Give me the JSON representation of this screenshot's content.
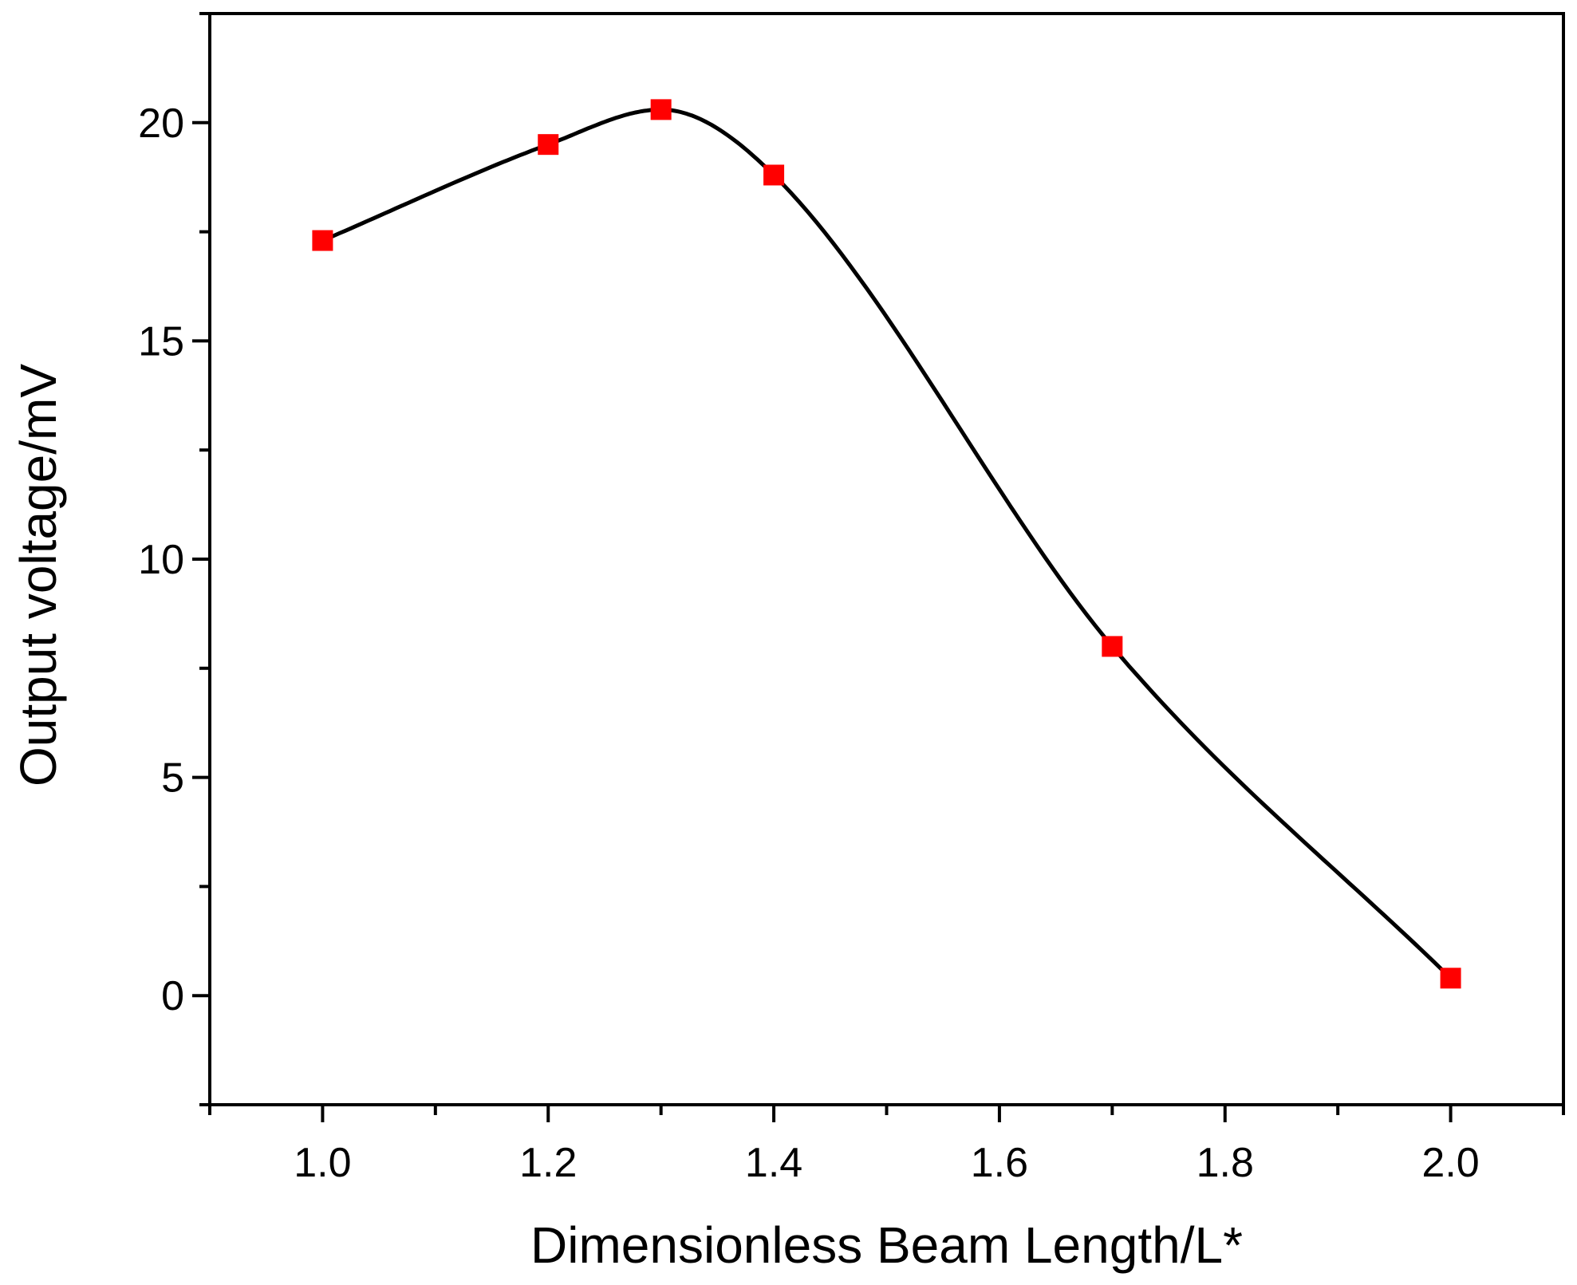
{
  "chart_data": {
    "type": "line",
    "title": "",
    "xlabel": "Dimensionless Beam Length/L*",
    "ylabel": "Output voltage/mV",
    "xlim": [
      0.9,
      2.1
    ],
    "ylim": [
      -2.5,
      22.5
    ],
    "x_ticks": [
      "1.0",
      "1.2",
      "1.4",
      "1.6",
      "1.8",
      "2.0"
    ],
    "y_ticks": [
      "0",
      "5",
      "10",
      "15",
      "20"
    ],
    "grid": false,
    "legend": "none",
    "line_color": "#000000",
    "marker": "square",
    "marker_color": "#ff0000",
    "series": [
      {
        "x": [
          1.0,
          1.2,
          1.3,
          1.4,
          1.7,
          2.0
        ],
        "y": [
          17.3,
          19.5,
          20.3,
          18.8,
          8.0,
          0.4
        ]
      }
    ]
  }
}
